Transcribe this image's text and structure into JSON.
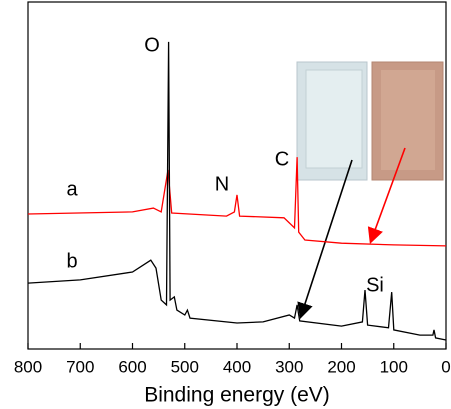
{
  "chart_data": {
    "type": "line",
    "x_label": "Binding energy (eV)",
    "xlim": [
      800,
      0
    ],
    "xticks": [
      800,
      700,
      600,
      500,
      400,
      300,
      200,
      100,
      0
    ],
    "ylim": [
      0,
      100
    ],
    "annotations": [
      "O",
      "N",
      "C",
      "Si"
    ],
    "series": [
      {
        "name": "a",
        "color": "#ff0000",
        "x": [
          800,
          600,
          560,
          545,
          532,
          525,
          420,
          405,
          400,
          395,
          310,
          290,
          285,
          282,
          270,
          200,
          100,
          0
        ],
        "values": [
          38.9,
          39.5,
          40.6,
          39.5,
          51.6,
          39.2,
          38.3,
          39.5,
          44.4,
          38.3,
          37.8,
          34.9,
          55.3,
          33.7,
          31.4,
          30.5,
          30,
          29.7
        ]
      },
      {
        "name": "b",
        "color": "#000000",
        "x": [
          800,
          700,
          600,
          565,
          555,
          545,
          535,
          531,
          528,
          520,
          515,
          500,
          495,
          490,
          400,
          350,
          300,
          290,
          285,
          280,
          200,
          160,
          155,
          150,
          110,
          104,
          100,
          50,
          25,
          23,
          20,
          0
        ],
        "values": [
          19,
          19.9,
          22.2,
          25.6,
          23.3,
          14.1,
          12.7,
          88.5,
          14.1,
          15,
          11.2,
          9.8,
          11.2,
          8.9,
          7.5,
          7.8,
          9.8,
          8.9,
          12.7,
          8.1,
          6.6,
          7.8,
          17,
          6.9,
          6.1,
          16.4,
          5.5,
          4,
          4,
          5.5,
          3.2,
          2.6
        ]
      }
    ]
  }
}
